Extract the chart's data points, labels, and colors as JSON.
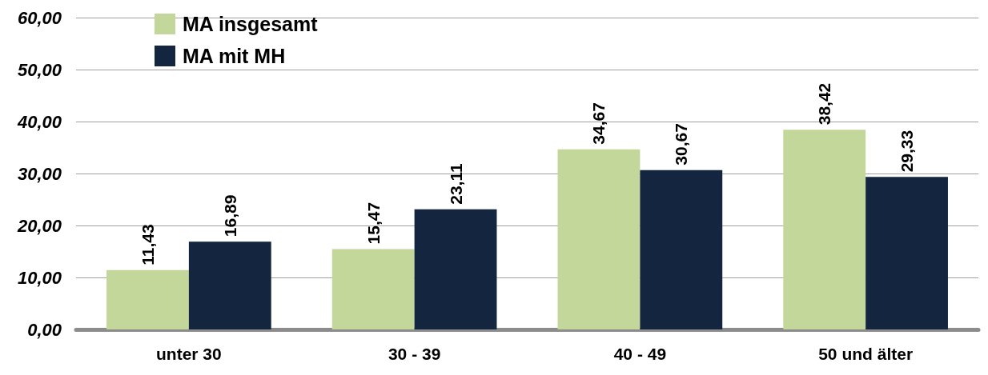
{
  "chart_data": {
    "type": "bar",
    "categories": [
      "unter 30",
      "30 - 39",
      "40 - 49",
      "50 und älter"
    ],
    "series": [
      {
        "name": "MA insgesamt",
        "color": "#c4d79b",
        "values": [
          11.43,
          15.47,
          34.67,
          38.42
        ],
        "value_labels": [
          "11,43",
          "15,47",
          "34,67",
          "38,42"
        ]
      },
      {
        "name": "MA mit MH",
        "color": "#14263f",
        "values": [
          16.89,
          23.11,
          30.67,
          29.33
        ],
        "value_labels": [
          "16,89",
          "23,11",
          "30,67",
          "29,33"
        ]
      }
    ],
    "ylim": [
      0,
      60
    ],
    "yticks": [
      {
        "value": 0,
        "label": "0,00"
      },
      {
        "value": 10,
        "label": "10,00"
      },
      {
        "value": 20,
        "label": "20,00"
      },
      {
        "value": 30,
        "label": "30,00"
      },
      {
        "value": 40,
        "label": "40,00"
      },
      {
        "value": 50,
        "label": "50,00"
      },
      {
        "value": 60,
        "label": "60,00"
      }
    ],
    "grid": "y",
    "legend": "top left"
  }
}
